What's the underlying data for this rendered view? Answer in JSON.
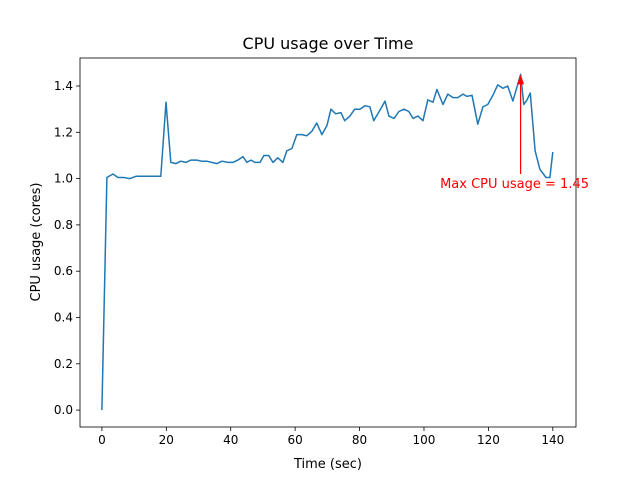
{
  "chart_data": {
    "type": "line",
    "title": "CPU usage over Time",
    "xlabel": "Time (sec)",
    "ylabel": "CPU usage (cores)",
    "xlim": [
      -6.8,
      147.2
    ],
    "ylim": [
      -0.073,
      1.521
    ],
    "xticks": [
      0,
      20,
      40,
      60,
      80,
      100,
      120,
      140
    ],
    "yticks": [
      0.0,
      0.2,
      0.4,
      0.6,
      0.8,
      1.0,
      1.2,
      1.4
    ],
    "grid": false,
    "series_color": "#1f77b4",
    "x": [
      0,
      1.55,
      3.4,
      5.0,
      6.8,
      8.7,
      10.6,
      12.4,
      14.3,
      16.1,
      18.3,
      19.9,
      21.4,
      23.0,
      24.5,
      26.1,
      27.6,
      29.5,
      31.0,
      32.6,
      34.1,
      35.7,
      37.3,
      39.1,
      40.7,
      42.2,
      43.8,
      45.0,
      46.3,
      47.5,
      49.1,
      50.3,
      51.8,
      53.1,
      54.6,
      56.2,
      57.4,
      59.0,
      60.5,
      62.1,
      63.6,
      65.2,
      66.7,
      68.3,
      69.9,
      71.1,
      72.6,
      74.2,
      75.4,
      77.0,
      78.5,
      80.1,
      81.7,
      83.2,
      84.4,
      86.3,
      87.9,
      89.1,
      90.7,
      92.2,
      93.8,
      95.3,
      96.6,
      98.1,
      99.7,
      101.2,
      102.8,
      104.0,
      105.9,
      107.4,
      109.0,
      110.5,
      112.1,
      113.3,
      114.9,
      116.7,
      118.3,
      119.8,
      121.4,
      122.9,
      124.5,
      126.0,
      127.6,
      130.0,
      131.0,
      132.0,
      133.0,
      134.5,
      136.0,
      137.9,
      139.1,
      140.0
    ],
    "y": [
      0.0,
      1.005,
      1.02,
      1.005,
      1.005,
      1.0,
      1.01,
      1.01,
      1.01,
      1.01,
      1.01,
      1.33,
      1.07,
      1.065,
      1.075,
      1.07,
      1.08,
      1.08,
      1.075,
      1.075,
      1.07,
      1.065,
      1.075,
      1.07,
      1.07,
      1.08,
      1.095,
      1.07,
      1.08,
      1.07,
      1.07,
      1.1,
      1.1,
      1.07,
      1.09,
      1.07,
      1.12,
      1.13,
      1.19,
      1.19,
      1.185,
      1.205,
      1.24,
      1.19,
      1.23,
      1.3,
      1.28,
      1.285,
      1.25,
      1.27,
      1.3,
      1.3,
      1.315,
      1.31,
      1.25,
      1.295,
      1.335,
      1.27,
      1.26,
      1.29,
      1.3,
      1.29,
      1.26,
      1.27,
      1.25,
      1.34,
      1.33,
      1.385,
      1.32,
      1.365,
      1.35,
      1.35,
      1.365,
      1.355,
      1.36,
      1.235,
      1.31,
      1.32,
      1.36,
      1.405,
      1.39,
      1.4,
      1.335,
      1.45,
      1.32,
      1.34,
      1.37,
      1.12,
      1.04,
      1.005,
      1.005,
      1.115
    ],
    "annotation": {
      "text": "Max CPU usage = 1.45",
      "point": [
        130,
        1.45
      ],
      "text_at": [
        105,
        0.95
      ],
      "arrow_from": [
        130,
        1.02
      ],
      "color": "#ff0000"
    }
  }
}
